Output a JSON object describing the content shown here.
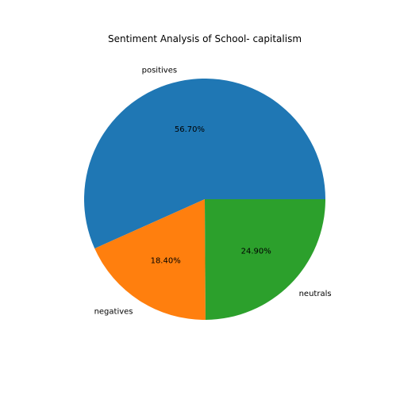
{
  "chart_data": {
    "type": "pie",
    "title": "Sentiment Analysis of School- capitalism",
    "categories": [
      "positives",
      "negatives",
      "neutrals"
    ],
    "values": [
      56.7,
      18.4,
      24.9
    ],
    "percent_labels": [
      "56.70%",
      "18.40%",
      "24.90%"
    ],
    "colors": [
      "#1f77b4",
      "#ff7f0e",
      "#2ca02c"
    ],
    "start_angle_deg": 0,
    "direction": "counterclockwise"
  }
}
